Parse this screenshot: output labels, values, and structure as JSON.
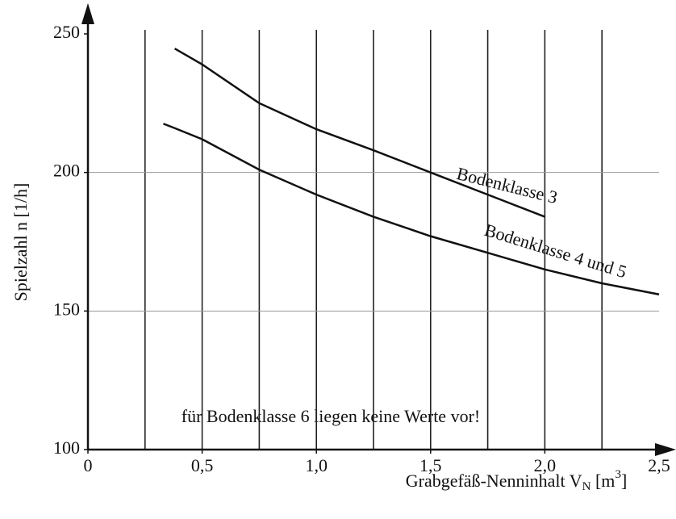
{
  "chart_data": {
    "type": "line",
    "ylabel": "Spielzahl n [1/h]",
    "xlabel": [
      "Grabgefäß-Nenninhalt V",
      "N",
      " [m",
      "3",
      "]"
    ],
    "annotation": "für Bodenklasse 6 liegen keine Werte vor!",
    "x": [
      0.33,
      0.38,
      0.5,
      0.75,
      1.0,
      1.25,
      1.5,
      1.75,
      2.0,
      2.25,
      2.5
    ],
    "series": [
      {
        "name": "Bodenklasse 3",
        "color": "#111111",
        "values": [
          null,
          244.7,
          239,
          225,
          215.6,
          208,
          200,
          192,
          184,
          null,
          null
        ]
      },
      {
        "name": "Bodenklasse 4 und 5",
        "color": "#111111",
        "values": [
          217.6,
          216,
          212,
          201,
          192,
          184,
          177,
          171,
          165,
          160,
          156
        ]
      }
    ],
    "xlim": [
      0,
      2.5
    ],
    "xticks": [
      0,
      {
        "value": 0.5,
        "label": "0,5"
      },
      {
        "value": 1.0,
        "label": "1,0"
      },
      {
        "value": 1.5,
        "label": "1,5"
      },
      {
        "value": 2.0,
        "label": "2,0"
      },
      {
        "value": 2.5,
        "label": "2,5"
      }
    ],
    "xminor_ticks": [
      0.25,
      0.5,
      0.75,
      1.0,
      1.25,
      1.5,
      1.75,
      2.0,
      2.25
    ],
    "ylim": [
      100,
      250
    ],
    "yticks": [
      100,
      150,
      200,
      250
    ],
    "grid": true
  }
}
